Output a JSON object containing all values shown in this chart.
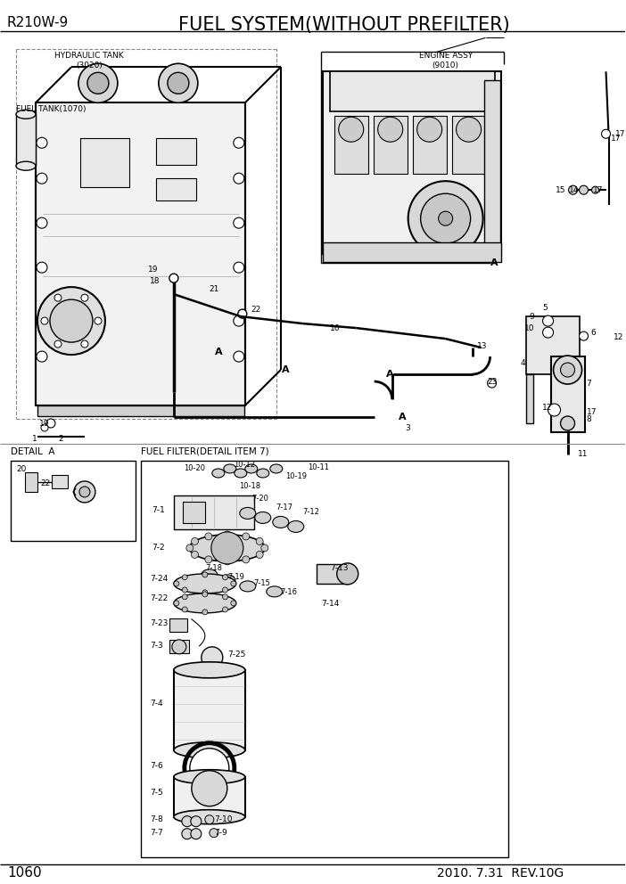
{
  "title": "FUEL SYSTEM(WITHOUT PREFILTER)",
  "model": "R210W-9",
  "page": "1060",
  "date": "2010. 7.31  REV.10G",
  "bg_color": "#ffffff",
  "line_color": "#000000",
  "detail_a_label": "DETAIL  A",
  "fuel_filter_label": "FUEL FILTER(DETAIL ITEM 7)",
  "hydraulic_tank_label": "HYDRAULIC TANK\n(3020)",
  "fuel_tank_label": "FUEL TANK(1070)",
  "engine_assy_label": "ENGINE ASSY\n(9010)"
}
